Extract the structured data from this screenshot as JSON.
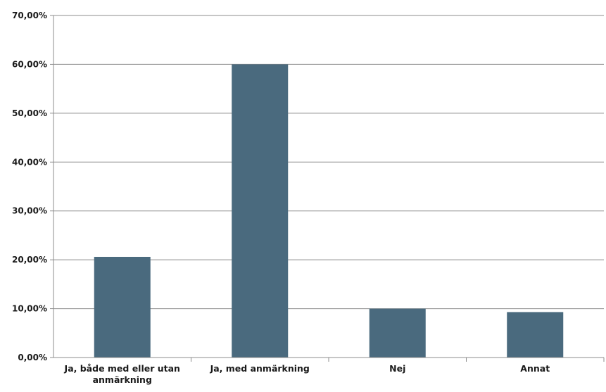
{
  "chart_data": {
    "type": "bar",
    "categories": [
      [
        "Ja, både med eller utan",
        "anmärkning"
      ],
      [
        "Ja, med anmärkning"
      ],
      [
        "Nej"
      ],
      [
        "Annat"
      ]
    ],
    "values": [
      20.6,
      60.0,
      10.0,
      9.3
    ],
    "yticks": [
      "0,00%",
      "10,00%",
      "20,00%",
      "30,00%",
      "40,00%",
      "50,00%",
      "60,00%",
      "70,00%"
    ],
    "ylim": [
      0,
      70
    ],
    "grid": true,
    "legend": "none",
    "bar_color": "#4a6a7e",
    "title": "",
    "xlabel": "",
    "ylabel": ""
  }
}
